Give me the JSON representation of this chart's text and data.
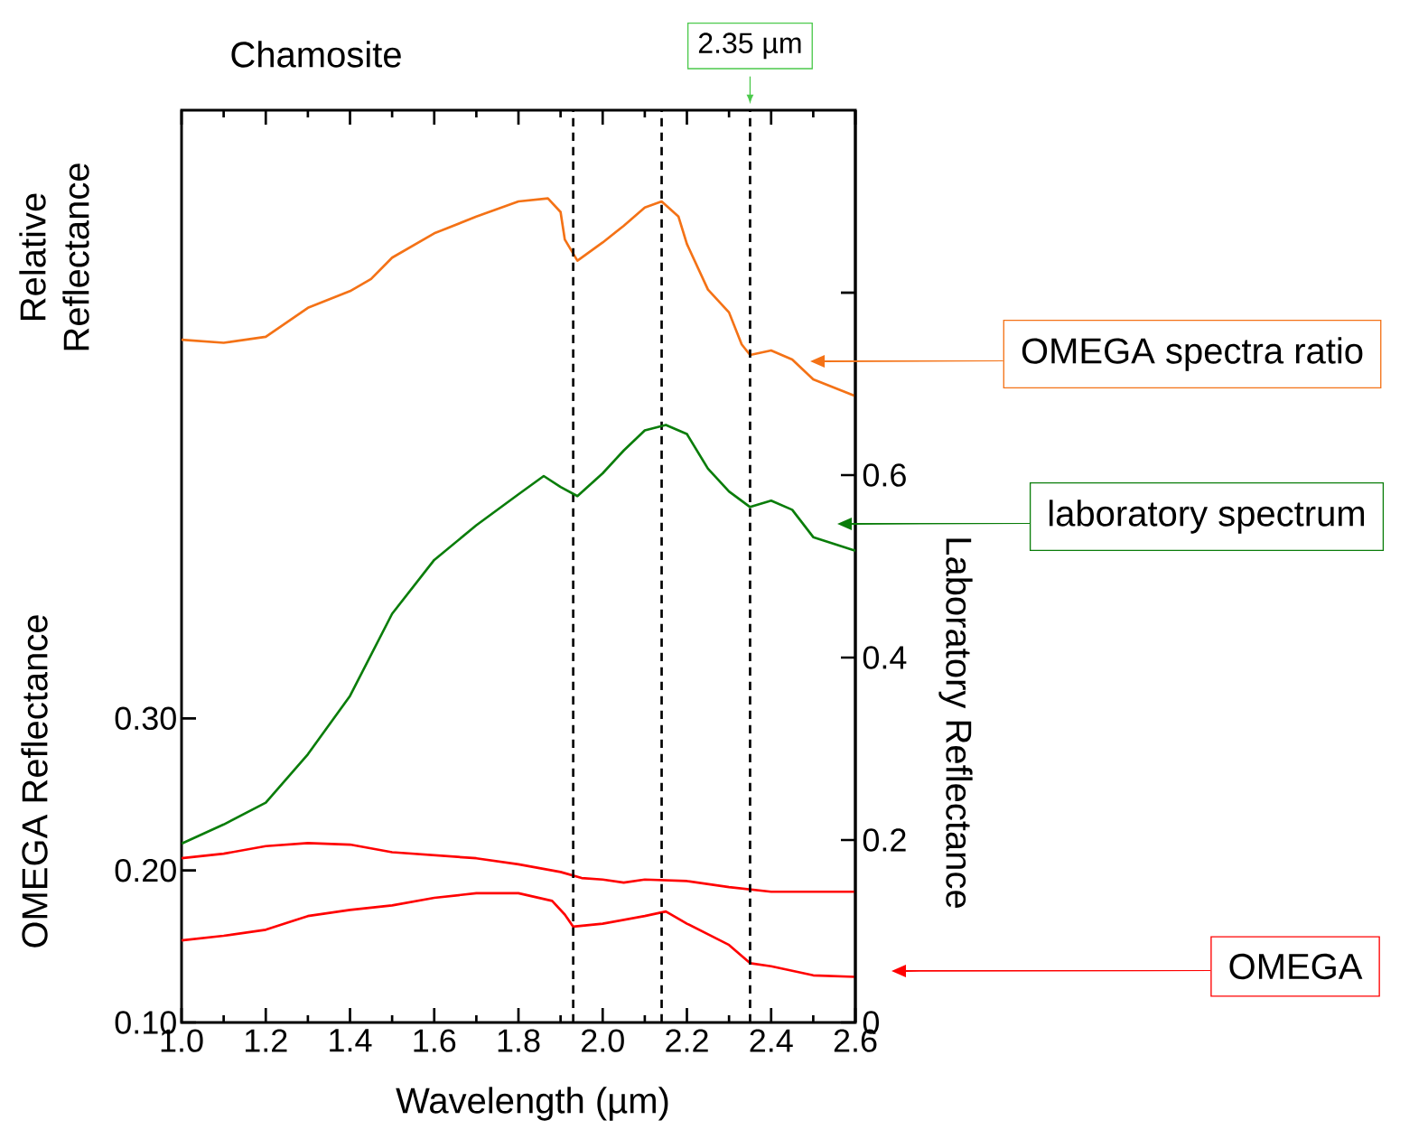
{
  "chart_data": {
    "type": "line",
    "title": "Chamosite",
    "xlabel": "Wavelength (µm)",
    "ylabel": "OMEGA Reflectance",
    "y2label": "Laboratory Reflectance",
    "annotations": [
      "Relative Reflectance"
    ],
    "legend": "right",
    "xlim": [
      1.0,
      2.6
    ],
    "xticks": [
      {
        "value": 1.0,
        "label": "1.0"
      },
      {
        "value": 1.2,
        "label": "1.2"
      },
      {
        "value": 1.4,
        "label": "1.4"
      },
      {
        "value": 1.6,
        "label": "1.6"
      },
      {
        "value": 1.8,
        "label": "1.8"
      },
      {
        "value": 2.0,
        "label": "2.0"
      },
      {
        "value": 2.2,
        "label": "2.2"
      },
      {
        "value": 2.4,
        "label": "2.4"
      },
      {
        "value": 2.6,
        "label": "2.6"
      }
    ],
    "ylim": [
      0.1,
      0.7
    ],
    "yticks": [
      {
        "value": 0.1,
        "label": "0.10"
      },
      {
        "value": 0.2,
        "label": "0.20"
      },
      {
        "value": 0.3,
        "label": "0.30"
      }
    ],
    "y2lim": [
      0,
      1.0
    ],
    "y2ticks": [
      0,
      0.2,
      0.4,
      0.6,
      {
        "value": 0.8,
        "label": null
      }
    ],
    "ref_lines": [
      {
        "axis": "x",
        "value": 1.93,
        "label": null,
        "color": "#000000",
        "line_style": "dashed"
      },
      {
        "axis": "x",
        "value": 2.14,
        "label": null,
        "color": "#000000",
        "line_style": "dashed"
      },
      {
        "axis": "x",
        "value": 2.35,
        "label": "2.35 µm",
        "color": "#000000",
        "line_style": "dashed"
      }
    ],
    "series": [
      {
        "name": "OMEGA spectra ratio",
        "color": "#f47216",
        "x": [
          1.0,
          1.1,
          1.2,
          1.3,
          1.4,
          1.45,
          1.5,
          1.6,
          1.7,
          1.8,
          1.87,
          1.9,
          1.91,
          1.94,
          2.0,
          2.05,
          2.1,
          2.14,
          2.18,
          2.2,
          2.25,
          2.3,
          2.33,
          2.35,
          2.4,
          2.45,
          2.5,
          2.6
        ],
        "values": [
          0.549,
          0.547,
          0.551,
          0.57,
          0.581,
          0.589,
          0.603,
          0.619,
          0.63,
          0.64,
          0.642,
          0.633,
          0.615,
          0.601,
          0.613,
          0.624,
          0.636,
          0.64,
          0.63,
          0.612,
          0.582,
          0.567,
          0.546,
          0.539,
          0.542,
          0.536,
          0.523,
          0.512
        ]
      },
      {
        "name": "laboratory spectrum",
        "color": "#0a7d0a",
        "axis": "y2",
        "x": [
          1.0,
          1.1,
          1.2,
          1.3,
          1.4,
          1.5,
          1.6,
          1.7,
          1.8,
          1.86,
          1.9,
          1.94,
          2.0,
          2.05,
          2.1,
          2.15,
          2.2,
          2.25,
          2.3,
          2.35,
          2.4,
          2.45,
          2.5,
          2.6
        ],
        "values": [
          0.196,
          0.217,
          0.241,
          0.294,
          0.358,
          0.448,
          0.507,
          0.545,
          0.579,
          0.599,
          0.587,
          0.577,
          0.602,
          0.627,
          0.649,
          0.655,
          0.645,
          0.607,
          0.582,
          0.565,
          0.572,
          0.562,
          0.532,
          0.517
        ]
      },
      {
        "color": "#ff0000",
        "x": [
          1.0,
          1.1,
          1.2,
          1.3,
          1.4,
          1.5,
          1.6,
          1.7,
          1.8,
          1.9,
          1.95,
          2.0,
          2.05,
          2.1,
          2.2,
          2.3,
          2.4,
          2.5,
          2.6
        ],
        "values": [
          0.208,
          0.211,
          0.216,
          0.218,
          0.217,
          0.212,
          0.21,
          0.208,
          0.204,
          0.199,
          0.195,
          0.194,
          0.192,
          0.194,
          0.193,
          0.189,
          0.186,
          0.186,
          0.186
        ]
      },
      {
        "name": "OMEGA",
        "color": "#ff0000",
        "x": [
          1.0,
          1.1,
          1.2,
          1.3,
          1.4,
          1.5,
          1.6,
          1.7,
          1.8,
          1.88,
          1.91,
          1.93,
          2.0,
          2.1,
          2.15,
          2.2,
          2.3,
          2.35,
          2.4,
          2.5,
          2.6
        ],
        "values": [
          0.154,
          0.157,
          0.161,
          0.17,
          0.174,
          0.177,
          0.182,
          0.185,
          0.185,
          0.18,
          0.171,
          0.163,
          0.165,
          0.17,
          0.173,
          0.165,
          0.151,
          0.139,
          0.137,
          0.131,
          0.13
        ]
      }
    ]
  }
}
